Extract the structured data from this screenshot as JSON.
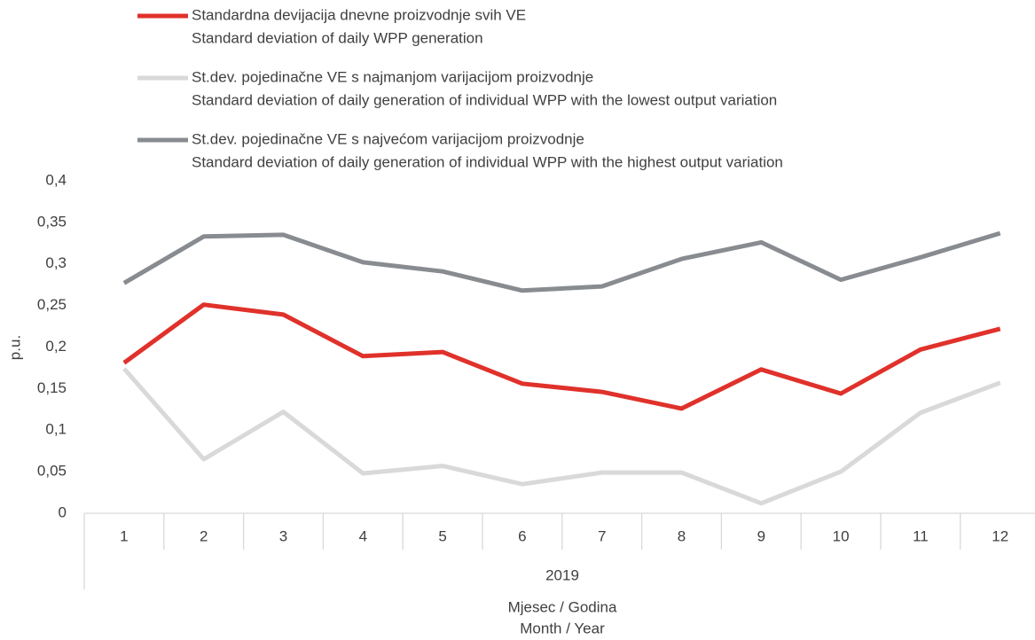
{
  "chart_data": {
    "type": "line",
    "ylabel": "p.u.",
    "xgroup": "2019",
    "xlabel": [
      "Mjesec / Godina",
      "Month / Year"
    ],
    "categories": [
      "1",
      "2",
      "3",
      "4",
      "5",
      "6",
      "7",
      "8",
      "9",
      "10",
      "11",
      "12"
    ],
    "series": [
      {
        "name": "Standardna devijacija dnevne proizvodnje svih VE",
        "subname": "Standard deviation of daily WPP generation",
        "color": "#e0312b",
        "values": [
          0.181,
          0.251,
          0.239,
          0.189,
          0.194,
          0.156,
          0.146,
          0.126,
          0.173,
          0.144,
          0.197,
          0.222
        ]
      },
      {
        "name": "St.dev. pojedinačne VE s najmanjom varijacijom proizvodnje",
        "subname": "Standard deviation of daily generation of individual WPP with the lowest output variation",
        "color": "#d9d9d9",
        "values": [
          0.174,
          0.065,
          0.122,
          0.048,
          0.057,
          0.035,
          0.049,
          0.049,
          0.012,
          0.05,
          0.121,
          0.157
        ]
      },
      {
        "name": "St.dev. pojedinačne VE s najvećom varijacijom proizvodnje",
        "subname": "Standard deviation of daily generation of individual WPP with the highest output variation",
        "color": "#888c90",
        "values": [
          0.277,
          0.333,
          0.335,
          0.302,
          0.291,
          0.268,
          0.273,
          0.306,
          0.326,
          0.281,
          0.308,
          0.337
        ]
      }
    ],
    "ylim": [
      0,
      0.4
    ],
    "yticks": [
      0,
      {
        "value": 0.05,
        "label": "0,05"
      },
      {
        "value": 0.1,
        "label": "0,1"
      },
      {
        "value": 0.15,
        "label": "0,15"
      },
      {
        "value": 0.2,
        "label": "0,2"
      },
      {
        "value": 0.25,
        "label": "0,25"
      },
      {
        "value": 0.3,
        "label": "0,3"
      },
      {
        "value": 0.35,
        "label": "0,35"
      },
      {
        "value": 0.4,
        "label": "0,4"
      }
    ],
    "grid": false
  }
}
